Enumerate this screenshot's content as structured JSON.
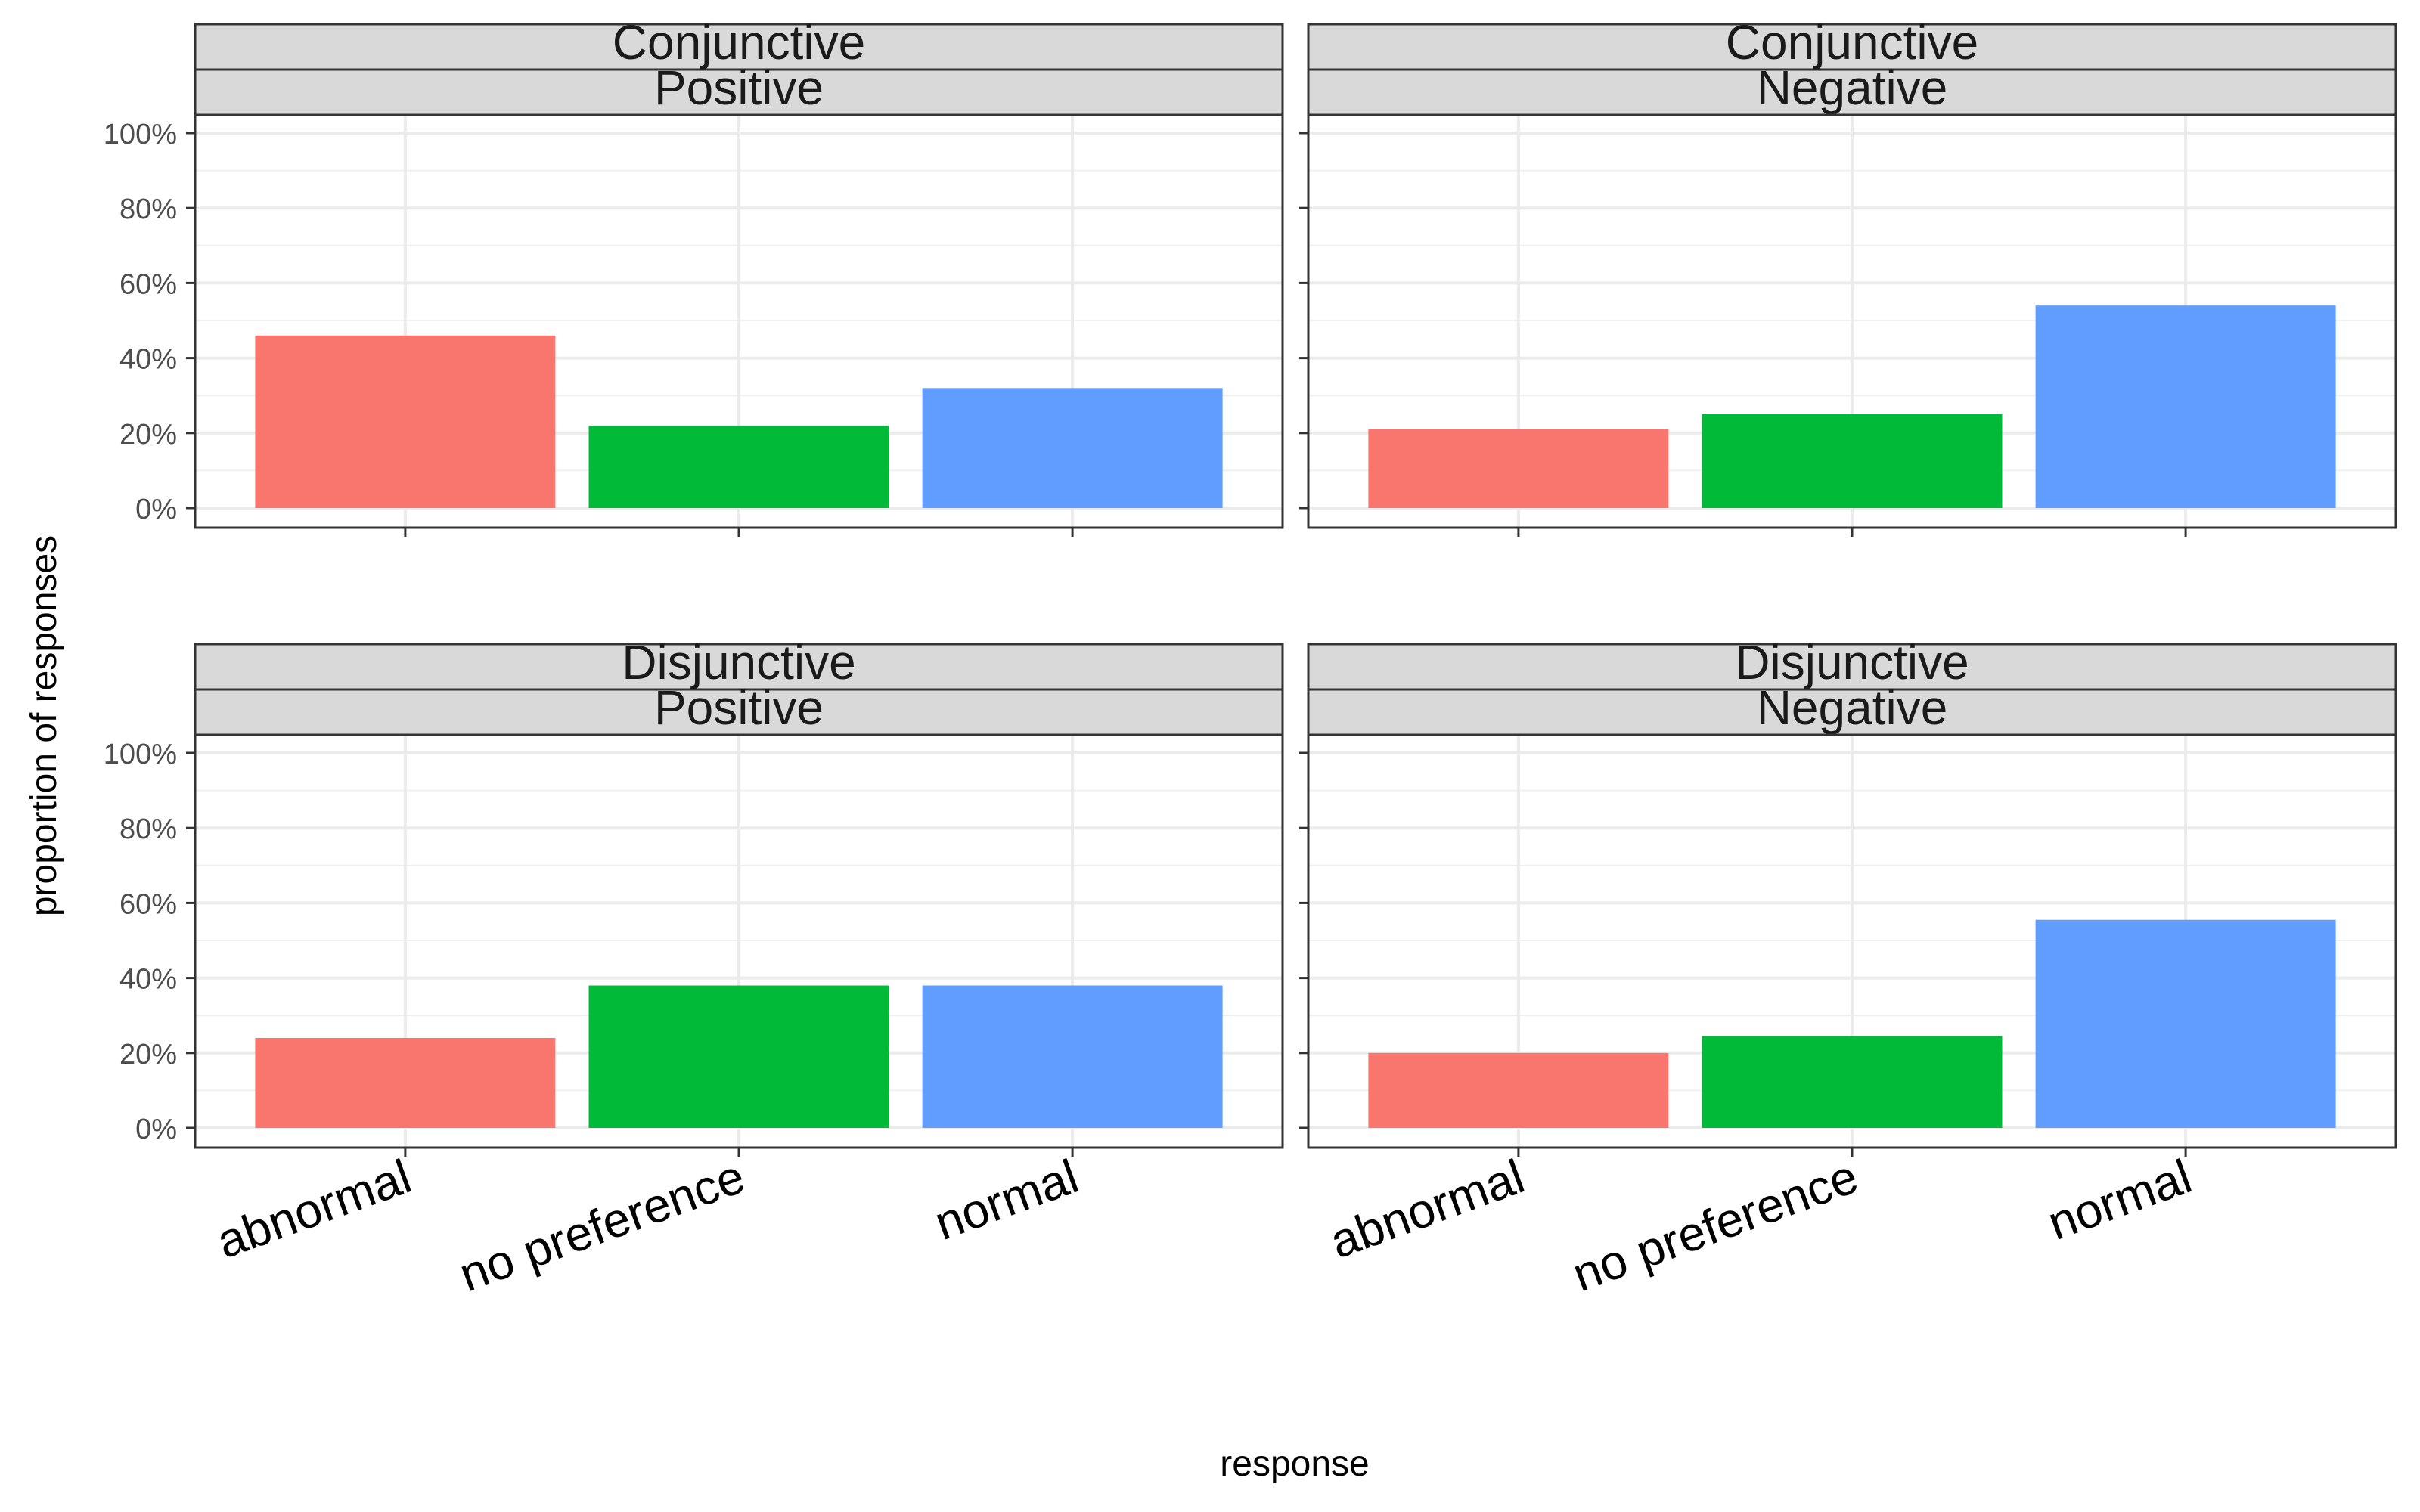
{
  "chart_data": {
    "type": "bar",
    "xlabel": "response",
    "ylabel": "proportion of responses",
    "categories": [
      "abnormal",
      "no preference",
      "normal"
    ],
    "colors": {
      "abnormal": "#F8766D",
      "no preference": "#00BA38",
      "normal": "#619CFF"
    },
    "ylim": [
      0,
      1
    ],
    "yticks": [
      "0%",
      "20%",
      "40%",
      "60%",
      "80%",
      "100%"
    ],
    "grid": true,
    "legend": "none",
    "panels": [
      {
        "strip_top": "Conjunctive",
        "strip_bottom": "Positive",
        "values": [
          0.46,
          0.22,
          0.32
        ]
      },
      {
        "strip_top": "Conjunctive",
        "strip_bottom": "Negative",
        "values": [
          0.21,
          0.25,
          0.54
        ]
      },
      {
        "strip_top": "Disjunctive",
        "strip_bottom": "Positive",
        "values": [
          0.24,
          0.38,
          0.38
        ]
      },
      {
        "strip_top": "Disjunctive",
        "strip_bottom": "Negative",
        "values": [
          0.2,
          0.245,
          0.555
        ]
      }
    ]
  }
}
